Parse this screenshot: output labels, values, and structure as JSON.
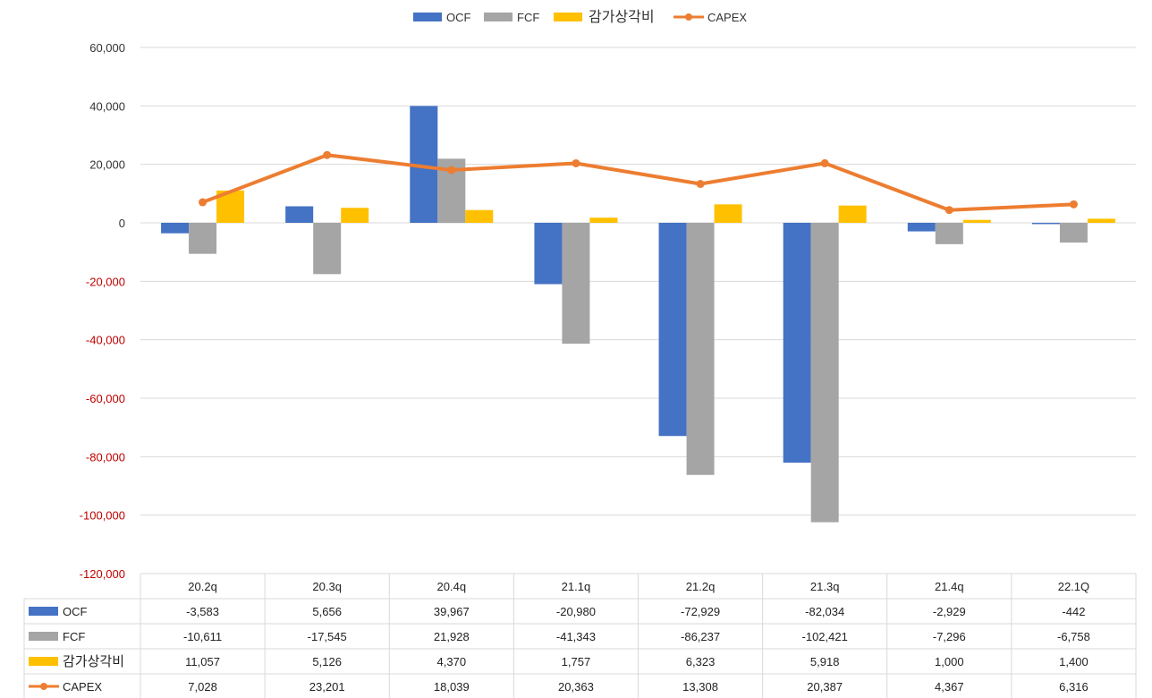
{
  "chart_data": {
    "type": "bar+line",
    "title": "",
    "categories": [
      "20.2q",
      "20.3q",
      "20.4q",
      "21.1q",
      "21.2q",
      "21.3q",
      "21.4q",
      "22.1Q"
    ],
    "series": [
      {
        "name": "OCF",
        "type": "bar",
        "color": "#4472C4",
        "values": [
          -3583,
          5656,
          39967,
          -20980,
          -72929,
          -82034,
          -2929,
          -442
        ],
        "labels": [
          "-3,583",
          "5,656",
          "39,967",
          "-20,980",
          "-72,929",
          "-82,034",
          "-2,929",
          "-442"
        ]
      },
      {
        "name": "FCF",
        "type": "bar",
        "color": "#A5A5A5",
        "values": [
          -10611,
          -17545,
          21928,
          -41343,
          -86237,
          -102421,
          -7296,
          -6758
        ],
        "labels": [
          "-10,611",
          "-17,545",
          "21,928",
          "-41,343",
          "-86,237",
          "-102,421",
          "-7,296",
          "-6,758"
        ]
      },
      {
        "name": "감가상각비",
        "type": "bar",
        "color": "#FFC000",
        "values": [
          11057,
          5126,
          4370,
          1757,
          6323,
          5918,
          1000,
          1400
        ],
        "labels": [
          "11,057",
          "5,126",
          "4,370",
          "1,757",
          "6,323",
          "5,918",
          "1,000",
          "1,400"
        ]
      },
      {
        "name": "CAPEX",
        "type": "line",
        "color": "#ED7D31",
        "values": [
          7028,
          23201,
          18039,
          20363,
          13308,
          20387,
          4367,
          6316
        ],
        "labels": [
          "7,028",
          "23,201",
          "18,039",
          "20,363",
          "13,308",
          "20,387",
          "4,367",
          "6,316"
        ]
      }
    ],
    "ylim": [
      -120000,
      60000
    ],
    "yticks": [
      60000,
      40000,
      20000,
      0,
      -20000,
      -40000,
      -60000,
      -80000,
      -100000,
      -120000
    ],
    "ytick_labels": [
      "60,000",
      "40,000",
      "20,000",
      "0",
      "-20,000",
      "-40,000",
      "-60,000",
      "-80,000",
      "-100,000",
      "-120,000"
    ],
    "positive_tick_color": "#333333",
    "negative_tick_color": "#C00000",
    "gridlines": true,
    "legend_position": "top-center",
    "data_table": true
  }
}
